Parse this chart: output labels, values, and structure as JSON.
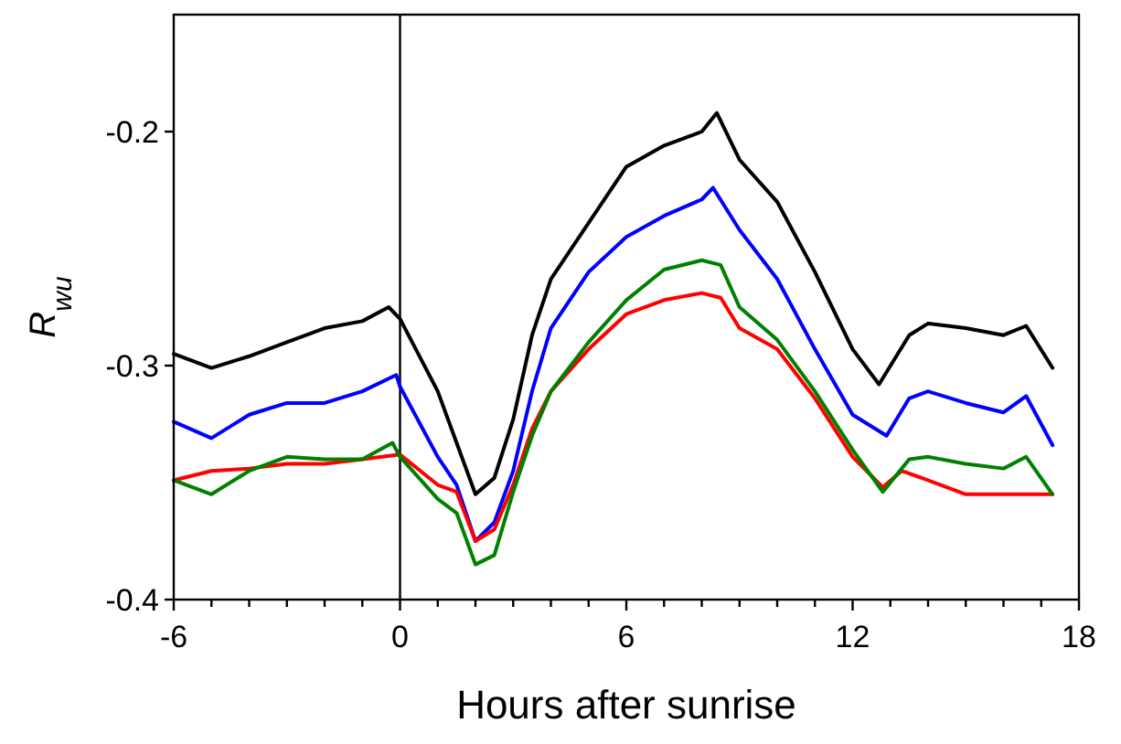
{
  "chart_data": {
    "type": "line",
    "xlabel": "Hours after sunrise",
    "ylabel": "R$_{wu}$",
    "xlim": [
      -6,
      18
    ],
    "ylim": [
      -0.4,
      -0.15
    ],
    "xticks": [
      -6,
      {
        "value": -5,
        "label": null
      },
      {
        "value": -4,
        "label": null
      },
      {
        "value": -3,
        "label": null
      },
      {
        "value": -2,
        "label": null
      },
      {
        "value": -1,
        "label": null
      },
      0,
      {
        "value": 1,
        "label": null
      },
      {
        "value": 2,
        "label": null
      },
      {
        "value": 3,
        "label": null
      },
      {
        "value": 4,
        "label": null
      },
      {
        "value": 5,
        "label": null
      },
      6,
      {
        "value": 7,
        "label": null
      },
      {
        "value": 8,
        "label": null
      },
      {
        "value": 9,
        "label": null
      },
      {
        "value": 10,
        "label": null
      },
      {
        "value": 11,
        "label": null
      },
      12,
      {
        "value": 13,
        "label": null
      },
      {
        "value": 14,
        "label": null
      },
      {
        "value": 15,
        "label": null
      },
      {
        "value": 16,
        "label": null
      },
      {
        "value": 17,
        "label": null
      },
      18
    ],
    "yticks": [
      -0.2,
      -0.3,
      -0.4
    ],
    "grid": false,
    "marker": "none",
    "line_style": "solid",
    "ref_lines": [
      {
        "axis": "x",
        "value": 0,
        "color": "#000000"
      }
    ],
    "series": [
      {
        "color": "#000000",
        "x": [
          -6,
          -5,
          -4,
          -3,
          -2,
          -1,
          -0.3,
          0,
          1,
          1.5,
          2,
          2.5,
          3,
          3.5,
          4,
          5,
          6,
          7,
          8,
          8.4,
          9,
          10,
          11,
          12,
          12.7,
          13.5,
          14,
          15,
          16,
          16.6,
          17.3
        ],
        "values": [
          -0.295,
          -0.301,
          -0.296,
          -0.29,
          -0.284,
          -0.281,
          -0.275,
          -0.28,
          -0.311,
          -0.333,
          -0.355,
          -0.348,
          -0.323,
          -0.287,
          -0.263,
          -0.239,
          -0.215,
          -0.206,
          -0.2,
          -0.192,
          -0.212,
          -0.23,
          -0.26,
          -0.293,
          -0.308,
          -0.287,
          -0.282,
          -0.284,
          -0.287,
          -0.283,
          -0.301
        ]
      },
      {
        "color": "#0000ff",
        "x": [
          -6,
          -5,
          -4,
          -3,
          -2,
          -1,
          -0.1,
          0,
          1,
          1.5,
          2,
          2.5,
          3,
          3.5,
          4,
          5,
          6,
          7,
          8,
          8.3,
          9,
          10,
          11,
          12,
          12.9,
          13.5,
          14,
          15,
          16,
          16.6,
          17.3
        ],
        "values": [
          -0.324,
          -0.331,
          -0.321,
          -0.316,
          -0.316,
          -0.311,
          -0.304,
          -0.309,
          -0.339,
          -0.351,
          -0.375,
          -0.367,
          -0.345,
          -0.311,
          -0.284,
          -0.26,
          -0.245,
          -0.236,
          -0.229,
          -0.224,
          -0.242,
          -0.263,
          -0.293,
          -0.321,
          -0.33,
          -0.314,
          -0.311,
          -0.316,
          -0.32,
          -0.313,
          -0.334
        ]
      },
      {
        "color": "#ff0000",
        "x": [
          -6,
          -5,
          -4,
          -3,
          -2,
          -1,
          0,
          1,
          1.5,
          2,
          2.5,
          3,
          3.5,
          4,
          5,
          6,
          7,
          8,
          8.5,
          9,
          10,
          11,
          12,
          12.8,
          13.3,
          14,
          15,
          16,
          17.3
        ],
        "values": [
          -0.349,
          -0.345,
          -0.344,
          -0.342,
          -0.342,
          -0.34,
          -0.338,
          -0.351,
          -0.354,
          -0.375,
          -0.37,
          -0.351,
          -0.327,
          -0.311,
          -0.293,
          -0.278,
          -0.272,
          -0.269,
          -0.271,
          -0.284,
          -0.293,
          -0.314,
          -0.339,
          -0.352,
          -0.345,
          -0.349,
          -0.355,
          -0.355,
          -0.355
        ]
      },
      {
        "color": "#008000",
        "x": [
          -6,
          -5,
          -4,
          -3,
          -2,
          -1,
          -0.2,
          0,
          1,
          1.5,
          2,
          2.5,
          3,
          3.5,
          4,
          5,
          6,
          7,
          8,
          8.5,
          9,
          10,
          11,
          12,
          12.8,
          13.5,
          14,
          15,
          16,
          16.6,
          17.3
        ],
        "values": [
          -0.349,
          -0.355,
          -0.345,
          -0.339,
          -0.34,
          -0.34,
          -0.333,
          -0.339,
          -0.357,
          -0.363,
          -0.385,
          -0.381,
          -0.354,
          -0.33,
          -0.311,
          -0.29,
          -0.272,
          -0.259,
          -0.255,
          -0.257,
          -0.275,
          -0.289,
          -0.311,
          -0.336,
          -0.354,
          -0.34,
          -0.339,
          -0.342,
          -0.344,
          -0.339,
          -0.355
        ]
      }
    ]
  }
}
